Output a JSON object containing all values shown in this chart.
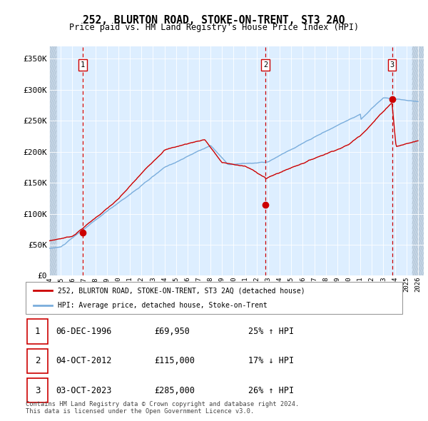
{
  "title": "252, BLURTON ROAD, STOKE-ON-TRENT, ST3 2AQ",
  "subtitle": "Price paid vs. HM Land Registry's House Price Index (HPI)",
  "xlim": [
    1994.0,
    2026.5
  ],
  "ylim": [
    0,
    370000
  ],
  "yticks": [
    0,
    50000,
    100000,
    150000,
    200000,
    250000,
    300000,
    350000
  ],
  "ytick_labels": [
    "£0",
    "£50K",
    "£100K",
    "£150K",
    "£200K",
    "£250K",
    "£300K",
    "£350K"
  ],
  "bg_color": "#ddeeff",
  "hatch_color": "#bbccdd",
  "grid_color": "#ffffff",
  "sale_dates_num": [
    1996.92,
    2012.75,
    2023.75
  ],
  "sale_prices": [
    69950,
    115000,
    285000
  ],
  "sale_labels": [
    "1",
    "2",
    "3"
  ],
  "legend_line1": "252, BLURTON ROAD, STOKE-ON-TRENT, ST3 2AQ (detached house)",
  "legend_line2": "HPI: Average price, detached house, Stoke-on-Trent",
  "table_data": [
    [
      "1",
      "06-DEC-1996",
      "£69,950",
      "25% ↑ HPI"
    ],
    [
      "2",
      "04-OCT-2012",
      "£115,000",
      "17% ↓ HPI"
    ],
    [
      "3",
      "03-OCT-2023",
      "£285,000",
      "26% ↑ HPI"
    ]
  ],
  "footer": "Contains HM Land Registry data © Crown copyright and database right 2024.\nThis data is licensed under the Open Government Licence v3.0.",
  "price_line_color": "#cc0000",
  "hpi_line_color": "#7aaddc",
  "dot_color": "#cc0000",
  "vline_color": "#cc0000"
}
